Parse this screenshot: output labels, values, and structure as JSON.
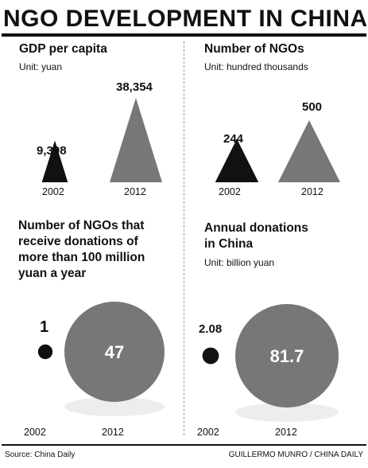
{
  "title": "NGO DEVELOPMENT IN CHINA",
  "chart_data": [
    {
      "type": "bar",
      "mark": "triangle",
      "title": "GDP per capita",
      "unit": "Unit: yuan",
      "categories": [
        "2002",
        "2012"
      ],
      "values": [
        9398,
        38354
      ],
      "value_labels": [
        "9,398",
        "38,354"
      ],
      "colors": [
        "#111111",
        "#777777"
      ]
    },
    {
      "type": "bar",
      "mark": "triangle",
      "title": "Number of NGOs",
      "unit": "Unit: hundred thousands",
      "categories": [
        "2002",
        "2012"
      ],
      "values": [
        244,
        500
      ],
      "value_labels": [
        "244",
        "500"
      ],
      "colors": [
        "#111111",
        "#777777"
      ]
    },
    {
      "type": "bubble",
      "title": "Number of NGOs that receive donations of more than 100 million yuan a year",
      "title_lines": [
        "Number of NGOs that",
        "receive donations of",
        "more than 100 million",
        "yuan a year"
      ],
      "categories": [
        "2002",
        "2012"
      ],
      "values": [
        1,
        47
      ],
      "value_labels": [
        "1",
        "47"
      ],
      "colors": [
        "#111111",
        "#777777"
      ]
    },
    {
      "type": "bubble",
      "title": "Annual donations in China",
      "title_lines": [
        "Annual donations",
        "in China"
      ],
      "unit": "Unit: billion yuan",
      "categories": [
        "2002",
        "2012"
      ],
      "values": [
        2.08,
        81.7
      ],
      "value_labels": [
        "2.08",
        "81.7"
      ],
      "colors": [
        "#111111",
        "#777777"
      ]
    }
  ],
  "footer": {
    "source": "Source: China Daily",
    "credit": "GUILLERMO MUNRO / CHINA DAILY"
  }
}
